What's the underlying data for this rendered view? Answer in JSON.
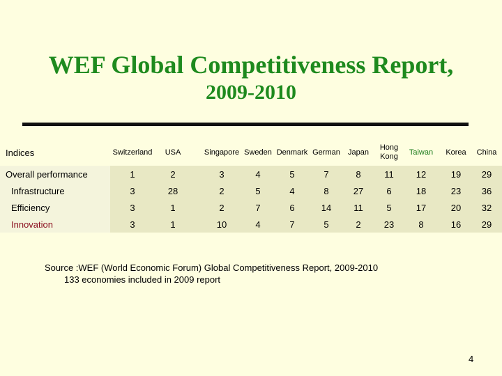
{
  "title": {
    "line1": "WEF Global Competitiveness Report,",
    "line2": "2009-2010"
  },
  "table": {
    "corner_label": "Indices",
    "columns": [
      "Switzerland",
      "USA",
      "Singapore",
      "Sweden",
      "Denmark",
      "German",
      "Japan",
      "Hong Kong",
      "Taiwan",
      "Korea",
      "China"
    ],
    "rows": [
      {
        "label": "Overall performance",
        "values": [
          "1",
          "2",
          "3",
          "4",
          "5",
          "7",
          "8",
          "11",
          "12",
          "19",
          "29"
        ]
      },
      {
        "label": "Infrastructure",
        "values": [
          "3",
          "28",
          "2",
          "5",
          "4",
          "8",
          "27",
          "6",
          "18",
          "23",
          "36"
        ]
      },
      {
        "label": "Efficiency",
        "values": [
          "3",
          "1",
          "2",
          "7",
          "6",
          "14",
          "11",
          "5",
          "17",
          "20",
          "32"
        ]
      },
      {
        "label": "Innovation",
        "values": [
          "3",
          "1",
          "10",
          "4",
          "7",
          "5",
          "2",
          "23",
          "8",
          "16",
          "29"
        ]
      }
    ]
  },
  "source": {
    "line1": "Source :WEF (World Economic Forum) Global Competitiveness Report, 2009-2010",
    "line2": "133 economies included in 2009 report"
  },
  "page_number": "4"
}
